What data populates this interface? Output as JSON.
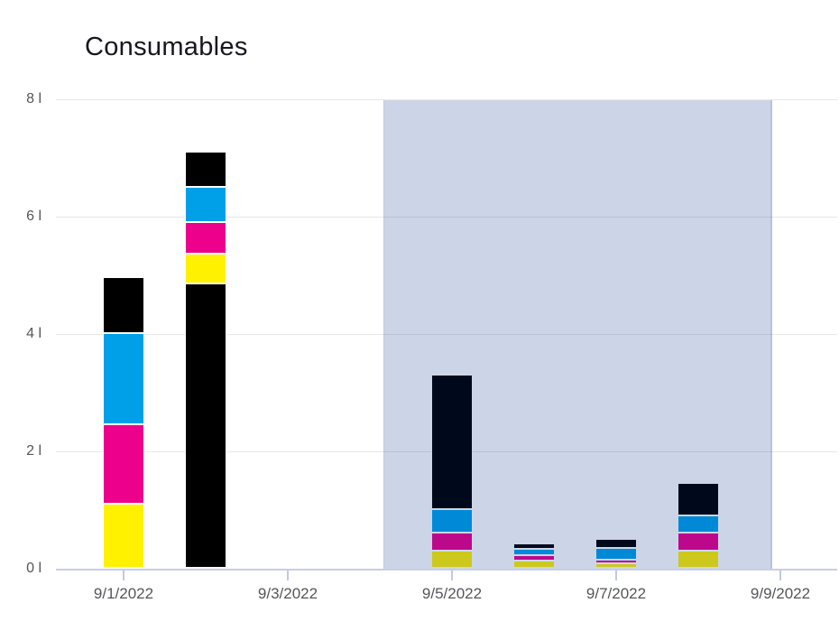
{
  "chart_data": {
    "type": "bar",
    "stacked": true,
    "title": "Consumables",
    "unit": "l",
    "ylim": [
      0,
      8
    ],
    "grid": true,
    "legend": "none",
    "y_ticks": [
      {
        "value": 0,
        "label": "0 l"
      },
      {
        "value": 2,
        "label": "2 l"
      },
      {
        "value": 4,
        "label": "4 l"
      },
      {
        "value": 6,
        "label": "6 l"
      },
      {
        "value": 8,
        "label": "8 l"
      }
    ],
    "x_ticks": [
      {
        "day": 1,
        "label": "9/1/2022"
      },
      {
        "day": 3,
        "label": "9/3/2022"
      },
      {
        "day": 5,
        "label": "9/5/2022"
      },
      {
        "day": 7,
        "label": "9/7/2022"
      },
      {
        "day": 9,
        "label": "9/9/2022"
      }
    ],
    "series_colors": {
      "black": "#000000",
      "cyan": "#00A0E9",
      "magenta": "#EC008C",
      "yellow": "#FFF100"
    },
    "bars": [
      {
        "date": "9/1/2022",
        "day": 1,
        "total_l": 4.95,
        "segments": [
          [
            "yellow",
            1.1
          ],
          [
            "magenta",
            1.35
          ],
          [
            "cyan",
            1.55
          ],
          [
            "black",
            0.95
          ]
        ]
      },
      {
        "date": "9/2/2022",
        "day": 2,
        "total_l": 7.1,
        "segments": [
          [
            "black",
            4.85
          ],
          [
            "yellow",
            0.5
          ],
          [
            "magenta",
            0.55
          ],
          [
            "cyan",
            0.6
          ],
          [
            "black",
            0.6
          ]
        ]
      },
      {
        "date": "9/5/2022",
        "day": 5,
        "total_l": 3.3,
        "segments": [
          [
            "yellow",
            0.3
          ],
          [
            "magenta",
            0.3
          ],
          [
            "cyan",
            0.4
          ],
          [
            "black",
            2.3
          ]
        ]
      },
      {
        "date": "9/6/2022",
        "day": 6,
        "total_l": 0.42,
        "segments": [
          [
            "yellow",
            0.12
          ],
          [
            "magenta",
            0.1
          ],
          [
            "cyan",
            0.1
          ],
          [
            "black",
            0.1
          ]
        ]
      },
      {
        "date": "9/7/2022",
        "day": 7,
        "total_l": 0.5,
        "segments": [
          [
            "yellow",
            0.07
          ],
          [
            "magenta",
            0.07
          ],
          [
            "cyan",
            0.2
          ],
          [
            "black",
            0.16
          ]
        ]
      },
      {
        "date": "9/8/2022",
        "day": 8,
        "total_l": 1.45,
        "segments": [
          [
            "yellow",
            0.3
          ],
          [
            "magenta",
            0.3
          ],
          [
            "cyan",
            0.3
          ],
          [
            "black",
            0.55
          ]
        ]
      }
    ],
    "highlight_band": {
      "from_day": 4.17,
      "to_day": 8.87,
      "color": "rgba(0,45,140,0.2)"
    },
    "colors": {
      "grid": "#e8e8e8",
      "axis": "#c8cee6",
      "tick": "#c2cae2",
      "label": "#55565a",
      "title": "#17171f",
      "background": "#ffffff"
    }
  }
}
